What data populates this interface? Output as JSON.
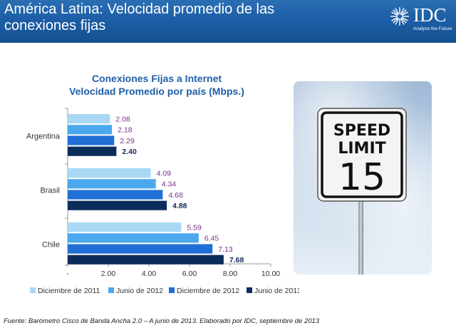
{
  "header": {
    "title_line1": "América Latina: Velocidad promedio de las",
    "title_line2": "conexiones fijas"
  },
  "logo": {
    "name": "IDC",
    "tagline": "Analyze the Future",
    "icon": "globe-icon"
  },
  "sign": {
    "line1": "SPEED",
    "line2": "LIMIT",
    "number": "15"
  },
  "source_note": "Fuente: Barómetro Cisco de Banda Ancha 2.0 – A junio de 2013. Elaborado por IDC, septiembre de 2013",
  "colors": {
    "header_blue": "#1d5ea6",
    "series": [
      "#a9d8f5",
      "#4ba8ee",
      "#1f6fd6",
      "#0c2d5c"
    ],
    "value_purple": "#7b2f8e",
    "value_dark": "#102a57"
  },
  "chart_data": {
    "type": "bar",
    "orientation": "horizontal",
    "title_line1": "Conexiones Fijas a Internet",
    "title_line2": "Velocidad Promedio por país (Mbps.)",
    "categories": [
      "Argentina",
      "Brasil",
      "Chile"
    ],
    "series": [
      {
        "name": "Diciembre de 2011",
        "values": [
          2.08,
          4.09,
          5.59
        ]
      },
      {
        "name": "Junio de 2012",
        "values": [
          2.18,
          4.34,
          6.45
        ]
      },
      {
        "name": "Diciembre de 2012",
        "values": [
          2.29,
          4.68,
          7.13
        ]
      },
      {
        "name": "Junio de 2013",
        "values": [
          2.4,
          4.88,
          7.68
        ]
      }
    ],
    "data_labels": [
      [
        "2.08",
        "4.09",
        "5.59"
      ],
      [
        "2.18",
        "4.34",
        "6.45"
      ],
      [
        "2.29",
        "4.68",
        "7.13"
      ],
      [
        "2.40",
        "4.88",
        "7.68"
      ]
    ],
    "x_ticks": [
      "-",
      "2.00",
      "4.00",
      "6.00",
      "8.00",
      "10.00"
    ],
    "xlim": [
      0,
      10
    ],
    "legend_position": "bottom",
    "grid": false
  }
}
